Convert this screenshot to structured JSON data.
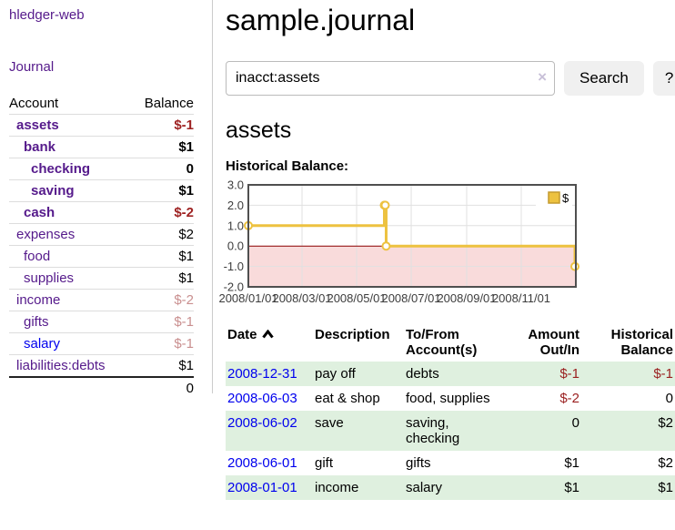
{
  "header": {
    "title": "sample.journal"
  },
  "sidebar": {
    "app_title": "hledger-web",
    "journal_label": "Journal",
    "accounts": {
      "header_account": "Account",
      "header_balance": "Balance",
      "rows": [
        {
          "name": "assets",
          "balance": "$-1",
          "depth": 0,
          "bold": true,
          "negative": "strong"
        },
        {
          "name": "bank",
          "balance": "$1",
          "depth": 1,
          "bold": true,
          "negative": null
        },
        {
          "name": "checking",
          "balance": "0",
          "depth": 2,
          "bold": true,
          "negative": null
        },
        {
          "name": "saving",
          "balance": "$1",
          "depth": 2,
          "bold": true,
          "negative": null
        },
        {
          "name": "cash",
          "balance": "$-2",
          "depth": 1,
          "bold": true,
          "negative": "strong"
        },
        {
          "name": "expenses",
          "balance": "$2",
          "depth": 0,
          "bold": false,
          "negative": null
        },
        {
          "name": "food",
          "balance": "$1",
          "depth": 1,
          "bold": false,
          "negative": null
        },
        {
          "name": "supplies",
          "balance": "$1",
          "depth": 1,
          "bold": false,
          "negative": null
        },
        {
          "name": "income",
          "balance": "$-2",
          "depth": 0,
          "bold": false,
          "negative": "weak"
        },
        {
          "name": "gifts",
          "balance": "$-1",
          "depth": 1,
          "bold": false,
          "negative": "weak"
        },
        {
          "name": "salary",
          "balance": "$-1",
          "depth": 1,
          "bold": false,
          "negative": "weak",
          "link_color": "blue"
        },
        {
          "name": "liabilities:debts",
          "balance": "$1",
          "depth": 0,
          "bold": false,
          "negative": null
        }
      ],
      "total": "0"
    }
  },
  "search": {
    "value": "inacct:assets",
    "clear_icon": "×",
    "button_label": "Search",
    "help_label": "?"
  },
  "account_page": {
    "heading": "assets",
    "chart_label": "Historical Balance:"
  },
  "chart_data": {
    "type": "line",
    "steps": true,
    "title": "Historical Balance",
    "x_start": "2008-01-01",
    "x_end": "2009-01-01",
    "x_ticks": [
      "2008/01/01",
      "2008/03/01",
      "2008/05/01",
      "2008/07/01",
      "2008/09/01",
      "2008/11/01"
    ],
    "x_tick_dates": [
      "2008-01-01",
      "2008-03-01",
      "2008-05-01",
      "2008-07-01",
      "2008-09-01",
      "2008-11-01"
    ],
    "y_ticks": [
      3.0,
      2.0,
      1.0,
      0.0,
      -1.0,
      -2.0
    ],
    "ylim": [
      -2.0,
      3.0
    ],
    "grid": true,
    "legend": {
      "position": "top-right",
      "entries": [
        {
          "label": "$",
          "color": "#edc240"
        }
      ]
    },
    "series": [
      {
        "name": "$",
        "color": "#edc240",
        "points": [
          [
            "2008-01-01",
            1
          ],
          [
            "2008-06-01",
            2
          ],
          [
            "2008-06-02",
            2
          ],
          [
            "2008-06-03",
            0
          ],
          [
            "2008-12-31",
            -1
          ]
        ]
      }
    ],
    "negative_region_fill": "#f9dbdb",
    "zero_line_color": "#8b0000",
    "gridline_color": "#e0e0e0",
    "border_color": "#4f4f4f"
  },
  "register": {
    "columns": [
      {
        "label": "Date",
        "sorted": "ascending"
      },
      {
        "label": "Description"
      },
      {
        "label": "To/From Account(s)"
      },
      {
        "label": "Amount Out/In",
        "align": "right"
      },
      {
        "label": "Historical Balance",
        "align": "right"
      }
    ],
    "rows": [
      {
        "date": "2008-12-31",
        "description": "pay off",
        "accounts": "debts",
        "amount": "$-1",
        "amount_negative": true,
        "balance": "$-1",
        "balance_negative": true,
        "shaded": true
      },
      {
        "date": "2008-06-03",
        "description": "eat & shop",
        "accounts": "food, supplies",
        "amount": "$-2",
        "amount_negative": true,
        "balance": "0",
        "balance_negative": false,
        "shaded": false
      },
      {
        "date": "2008-06-02",
        "description": "save",
        "accounts": "saving,\nchecking",
        "amount": "0",
        "amount_negative": false,
        "balance": "$2",
        "balance_negative": false,
        "shaded": true
      },
      {
        "date": "2008-06-01",
        "description": "gift",
        "accounts": "gifts",
        "amount": "$1",
        "amount_negative": false,
        "balance": "$2",
        "balance_negative": false,
        "shaded": false
      },
      {
        "date": "2008-01-01",
        "description": "income",
        "accounts": "salary",
        "amount": "$1",
        "amount_negative": false,
        "balance": "$1",
        "balance_negative": false,
        "shaded": true
      }
    ]
  },
  "colors": {
    "link_purple": "#551a8b",
    "link_blue": "#0000ee",
    "negative_strong": "#9e2222",
    "negative_weak": "#c98f8f",
    "row_shade_green": "#dff0df",
    "series_yellow": "#edc240",
    "negative_region_pink": "#f9dbdb",
    "zero_line_red": "#8b0000"
  }
}
